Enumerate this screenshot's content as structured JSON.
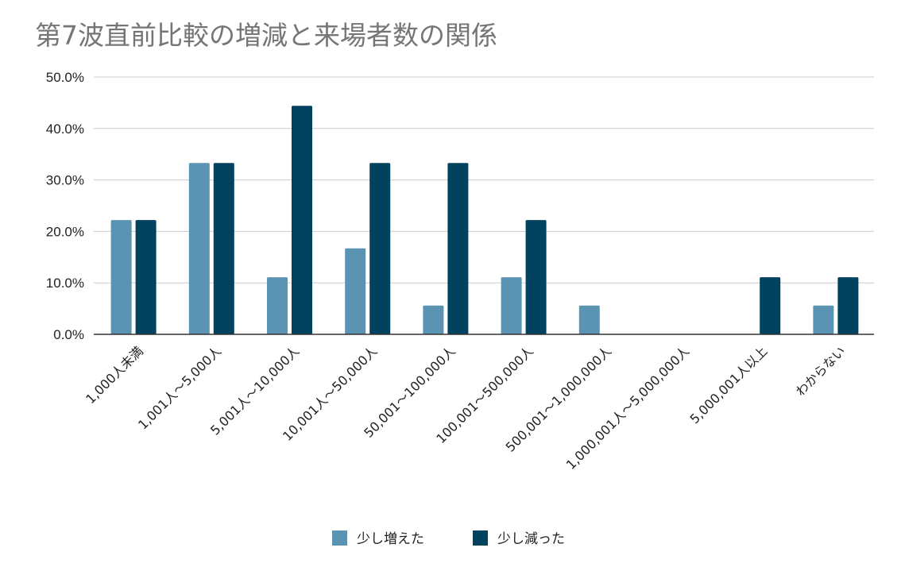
{
  "chart_data": {
    "type": "bar",
    "title": "第7波直前比較の増減と来場者数の関係",
    "xlabel": "",
    "ylabel": "",
    "categories": [
      "1,000人未満",
      "1,001人～5,000人",
      "5,001人～10,000人",
      "10,001人～50,000人",
      "50,001～100,000人",
      "100,001～500,000人",
      "500,001～1,000,000人",
      "1,000,001人～5,000,000人",
      "5,000,001人以上",
      "わからない"
    ],
    "series": [
      {
        "name": "少し増えた",
        "color": "#5b93b2",
        "values": [
          22.2,
          33.3,
          11.1,
          16.7,
          5.6,
          11.1,
          5.6,
          0,
          0,
          5.6
        ]
      },
      {
        "name": "少し減った",
        "color": "#01425f",
        "values": [
          22.2,
          33.3,
          44.4,
          33.3,
          33.3,
          22.2,
          0,
          0,
          11.1,
          11.1
        ]
      }
    ],
    "ylim": [
      0,
      50
    ],
    "yticks": [
      "0.0%",
      "10.0%",
      "20.0%",
      "30.0%",
      "40.0%",
      "50.0%"
    ],
    "grid": true,
    "legend_position": "bottom"
  }
}
